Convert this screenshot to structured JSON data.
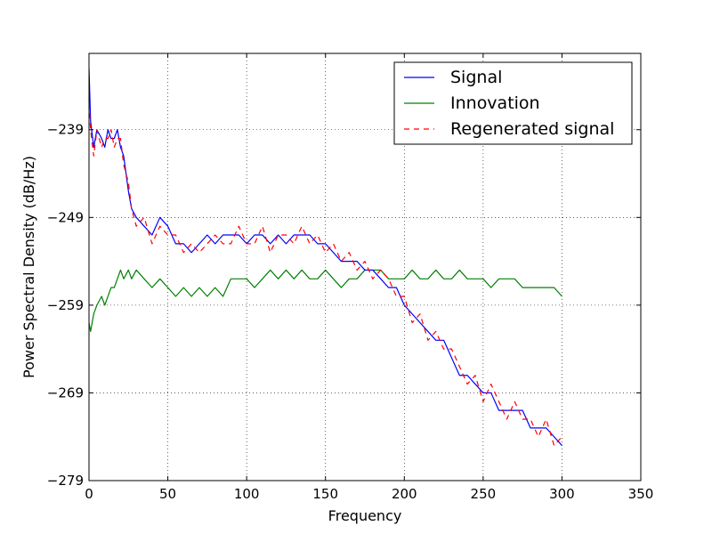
{
  "chart_data": {
    "type": "line",
    "title": "",
    "xlabel": "Frequency",
    "ylabel": "Power Spectral Density (dB/Hz)",
    "xlim": [
      0,
      350
    ],
    "ylim": [
      -279,
      -230.3
    ],
    "x_ticks": [
      0,
      50,
      100,
      150,
      200,
      250,
      300,
      350
    ],
    "x_tick_labels": [
      "0",
      "50",
      "100",
      "150",
      "200",
      "250",
      "300",
      "350"
    ],
    "y_ticks": [
      -279,
      -269,
      -259,
      -249,
      -239
    ],
    "y_tick_labels": [
      "−279",
      "−269",
      "−259",
      "−249",
      "−239"
    ],
    "grid": true,
    "legend_position": "top-right",
    "series": [
      {
        "name": "Signal",
        "color": "#0000ff",
        "dash": "solid",
        "x": [
          0,
          1,
          3,
          5,
          8,
          10,
          12,
          14,
          16,
          18,
          20,
          22,
          25,
          27,
          30,
          35,
          40,
          45,
          50,
          55,
          60,
          65,
          70,
          75,
          80,
          85,
          90,
          95,
          100,
          105,
          110,
          115,
          120,
          125,
          130,
          135,
          140,
          145,
          150,
          155,
          160,
          165,
          170,
          175,
          180,
          185,
          190,
          195,
          200,
          205,
          210,
          215,
          220,
          225,
          230,
          235,
          240,
          245,
          250,
          255,
          260,
          265,
          270,
          275,
          280,
          285,
          290,
          295,
          300
        ],
        "y": [
          -232,
          -238,
          -241,
          -239,
          -240,
          -241,
          -239,
          -240,
          -240,
          -239,
          -241,
          -242,
          -246,
          -248,
          -249,
          -250,
          -251,
          -249,
          -250,
          -252,
          -252,
          -253,
          -252,
          -251,
          -252,
          -251,
          -251,
          -251,
          -252,
          -251,
          -251,
          -252,
          -251,
          -252,
          -251,
          -251,
          -251,
          -252,
          -252,
          -253,
          -254,
          -254,
          -254,
          -255,
          -255,
          -256,
          -257,
          -257,
          -259,
          -260,
          -261,
          -262,
          -263,
          -263,
          -265,
          -267,
          -267,
          -268,
          -269,
          -269,
          -271,
          -271,
          -271,
          -271,
          -273,
          -273,
          -273,
          -274,
          -275
        ]
      },
      {
        "name": "Innovation",
        "color": "#008000",
        "dash": "solid",
        "x": [
          0,
          1,
          3,
          5,
          8,
          10,
          12,
          14,
          16,
          18,
          20,
          22,
          25,
          27,
          30,
          35,
          40,
          45,
          50,
          55,
          60,
          65,
          70,
          75,
          80,
          85,
          90,
          95,
          100,
          105,
          110,
          115,
          120,
          125,
          130,
          135,
          140,
          145,
          150,
          155,
          160,
          165,
          170,
          175,
          180,
          185,
          190,
          195,
          200,
          205,
          210,
          215,
          220,
          225,
          230,
          235,
          240,
          245,
          250,
          255,
          260,
          265,
          270,
          275,
          280,
          285,
          290,
          295,
          300
        ],
        "y": [
          -261,
          -262,
          -260,
          -259,
          -258,
          -259,
          -258,
          -257,
          -257,
          -256,
          -255,
          -256,
          -255,
          -256,
          -255,
          -256,
          -257,
          -256,
          -257,
          -258,
          -257,
          -258,
          -257,
          -258,
          -257,
          -258,
          -256,
          -256,
          -256,
          -257,
          -256,
          -255,
          -256,
          -255,
          -256,
          -255,
          -256,
          -256,
          -255,
          -256,
          -257,
          -256,
          -256,
          -255,
          -255,
          -255,
          -256,
          -256,
          -256,
          -255,
          -256,
          -256,
          -255,
          -256,
          -256,
          -255,
          -256,
          -256,
          -256,
          -257,
          -256,
          -256,
          -256,
          -257,
          -257,
          -257,
          -257,
          -257,
          -258
        ]
      },
      {
        "name": "Regenerated signal",
        "color": "#ff0000",
        "dash": "dashed",
        "x": [
          0,
          1,
          3,
          5,
          8,
          10,
          12,
          14,
          16,
          18,
          20,
          22,
          25,
          27,
          30,
          35,
          40,
          45,
          50,
          55,
          60,
          65,
          70,
          75,
          80,
          85,
          90,
          95,
          100,
          105,
          110,
          115,
          120,
          125,
          130,
          135,
          140,
          145,
          150,
          155,
          160,
          165,
          170,
          175,
          180,
          185,
          190,
          195,
          200,
          205,
          210,
          215,
          220,
          225,
          230,
          235,
          240,
          245,
          250,
          255,
          260,
          265,
          270,
          275,
          280,
          285,
          290,
          295,
          300
        ],
        "y": [
          -236,
          -239,
          -242,
          -239,
          -241,
          -240,
          -240,
          -239,
          -241,
          -240,
          -240,
          -243,
          -245,
          -248,
          -250,
          -249,
          -252,
          -250,
          -251,
          -251,
          -253,
          -252,
          -253,
          -252,
          -251,
          -252,
          -252,
          -250,
          -252,
          -252,
          -250,
          -253,
          -251,
          -251,
          -252,
          -250,
          -252,
          -251,
          -253,
          -252,
          -254,
          -253,
          -255,
          -254,
          -256,
          -255,
          -256,
          -258,
          -258,
          -261,
          -260,
          -263,
          -262,
          -264,
          -264,
          -266,
          -268,
          -267,
          -270,
          -268,
          -270,
          -272,
          -270,
          -272,
          -272,
          -274,
          -272,
          -275,
          -274
        ]
      }
    ]
  }
}
